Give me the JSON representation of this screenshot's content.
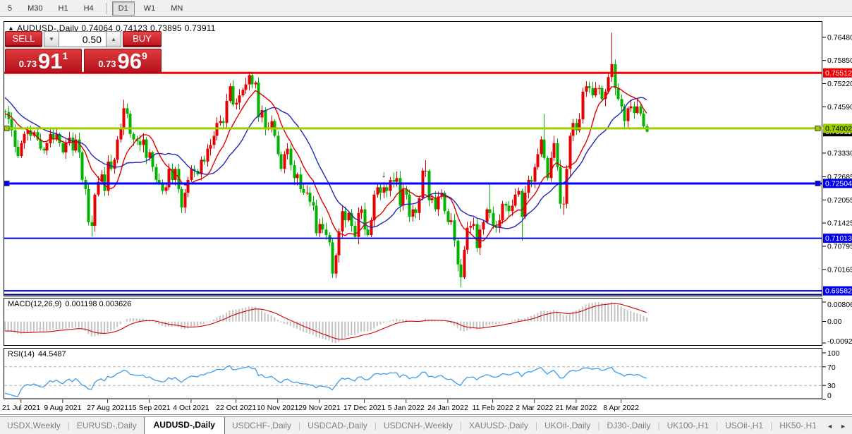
{
  "toolbar": {
    "timeframes": [
      {
        "label": "5",
        "active": false
      },
      {
        "label": "M30",
        "active": false
      },
      {
        "label": "H1",
        "active": false
      },
      {
        "label": "H4",
        "active": false
      },
      {
        "label": "D1",
        "active": true
      },
      {
        "label": "W1",
        "active": false
      },
      {
        "label": "MN",
        "active": false
      }
    ]
  },
  "quote_line": {
    "collapse_triangle": "▲",
    "symbol": "AUDUSD-,Daily",
    "open": "0.74064",
    "high": "0.74123",
    "low": "0.73895",
    "close": "0.73911"
  },
  "trade_panel": {
    "sell_label": "SELL",
    "buy_label": "BUY",
    "volume": "0.50",
    "down_arrow": "▼",
    "up_arrow": "▲",
    "sell_price_prefix": "0.73",
    "sell_price_big": "91",
    "sell_price_sup": "1",
    "buy_price_prefix": "0.73",
    "buy_price_big": "96",
    "buy_price_sup": "9"
  },
  "price_axis": {
    "ticks": [
      "0.76480",
      "0.75850",
      "0.75220",
      "0.74590",
      "0.73330",
      "0.72685",
      "0.72055",
      "0.71425",
      "0.70795",
      "0.70165"
    ],
    "badges": [
      {
        "label": "0.73911",
        "price": 0.73911,
        "bg": "#000000",
        "fg": "#ffffff"
      },
      {
        "label": "0.75512",
        "price": 0.75512,
        "bg": "#f00000",
        "fg": "#ffffff"
      },
      {
        "label": "0.74002",
        "price": 0.74002,
        "bg": "#9bcd00",
        "fg": "#000000"
      },
      {
        "label": "0.72504",
        "price": 0.72504,
        "bg": "#0000e8",
        "fg": "#ffffff"
      },
      {
        "label": "0.71013",
        "price": 0.71013,
        "bg": "#0000e8",
        "fg": "#ffffff"
      },
      {
        "label": "0.69582",
        "price": 0.69582,
        "bg": "#0000e8",
        "fg": "#ffffff"
      }
    ]
  },
  "macd_panel": {
    "name": "MACD(12,26,9)",
    "values": "0.001198 0.003626",
    "axis_max": "0.008061",
    "axis_zero": "0.00",
    "axis_min": "-0.009286"
  },
  "rsi_panel": {
    "name": "RSI(14)",
    "value": "44.5487",
    "axis": [
      "100",
      "70",
      "30",
      "0"
    ],
    "level_high": 70,
    "level_low": 30
  },
  "date_axis": {
    "ticks": [
      {
        "label": "21 Jul 2021",
        "i": 5
      },
      {
        "label": "9 Aug 2021",
        "i": 18
      },
      {
        "label": "27 Aug 2021",
        "i": 32
      },
      {
        "label": "15 Sep 2021",
        "i": 45
      },
      {
        "label": "4 Oct 2021",
        "i": 58
      },
      {
        "label": "22 Oct 2021",
        "i": 72
      },
      {
        "label": "10 Nov 2021",
        "i": 85
      },
      {
        "label": "29 Nov 2021",
        "i": 98
      },
      {
        "label": "17 Dec 2021",
        "i": 112
      },
      {
        "label": "5 Jan 2022",
        "i": 125
      },
      {
        "label": "24 Jan 2022",
        "i": 138
      },
      {
        "label": "11 Feb 2022",
        "i": 152
      },
      {
        "label": "2 Mar 2022",
        "i": 165
      },
      {
        "label": "21 Mar 2022",
        "i": 178
      },
      {
        "label": "8 Apr 2022",
        "i": 192
      }
    ]
  },
  "tabs": {
    "items": [
      {
        "label": "USDX,Weekly",
        "active": false
      },
      {
        "label": "EURUSD-,Daily",
        "active": false
      },
      {
        "label": "AUDUSD-,Daily",
        "active": true
      },
      {
        "label": "USDCHF-,Daily",
        "active": false
      },
      {
        "label": "USDCAD-,Daily",
        "active": false
      },
      {
        "label": "USDCNH-,Weekly",
        "active": false
      },
      {
        "label": "XAUUSD-,Daily",
        "active": false
      },
      {
        "label": "UKOil-,Daily",
        "active": false
      },
      {
        "label": "DJ30-,Daily",
        "active": false
      },
      {
        "label": "UK100-,H1",
        "active": false
      },
      {
        "label": "USOil-,H1",
        "active": false
      },
      {
        "label": "HK50-,H1",
        "active": false
      }
    ],
    "scroll_left": "◄",
    "scroll_right": "►"
  },
  "chart_data": {
    "type": "candlestick",
    "symbol": "AUDUSD",
    "timeframe": "Daily",
    "last_ohlc": {
      "open": 0.74064,
      "high": 0.74123,
      "low": 0.73895,
      "close": 0.73911
    },
    "y_axis": {
      "price_top": 0.769,
      "price_bottom": 0.6945
    },
    "colors": {
      "bull": "#e60000",
      "bear": "#00b400",
      "ma_fast": "#dd0000",
      "ma_slow": "#2028b8",
      "macd_hist": "#c3c3c3",
      "macd_signal": "#d00000",
      "rsi_line": "#3e9be8",
      "rsi_grid": "#b0b0b0"
    },
    "ma_fast_period": 10,
    "ma_slow_period": 20,
    "levels": [
      {
        "price": 0.75512,
        "color": "#f00000",
        "width": 3,
        "handle": false
      },
      {
        "price": 0.74002,
        "color": "#9bcd00",
        "width": 3,
        "handle": true
      },
      {
        "price": 0.72504,
        "color": "#0000ff",
        "width": 3,
        "handle": true
      },
      {
        "price": 0.71013,
        "color": "#0000e0",
        "width": 2,
        "handle": false
      },
      {
        "price": 0.69582,
        "color": "#0000e0",
        "width": 2,
        "handle": false
      },
      {
        "price": 0.6948,
        "color": "#000080",
        "width": 2,
        "handle": false
      }
    ],
    "annotations": [
      {
        "i": 118,
        "price": 0.7268,
        "glyph": "↓"
      }
    ],
    "warmup": [
      0.76,
      0.759,
      0.758,
      0.7565,
      0.755,
      0.7535,
      0.752,
      0.7505,
      0.749,
      0.7478,
      0.7468,
      0.7458,
      0.745,
      0.7442,
      0.7436,
      0.743,
      0.7426,
      0.743,
      0.7438,
      0.7446
    ],
    "closes": [
      0.7445,
      0.7425,
      0.7395,
      0.735,
      0.7325,
      0.736,
      0.7385,
      0.7395,
      0.738,
      0.739,
      0.737,
      0.7345,
      0.734,
      0.736,
      0.7385,
      0.737,
      0.7385,
      0.736,
      0.7335,
      0.736,
      0.7375,
      0.734,
      0.737,
      0.7335,
      0.726,
      0.7235,
      0.7145,
      0.7135,
      0.722,
      0.7255,
      0.7275,
      0.723,
      0.731,
      0.729,
      0.7315,
      0.737,
      0.74,
      0.7455,
      0.744,
      0.7385,
      0.737,
      0.7365,
      0.7355,
      0.737,
      0.732,
      0.7335,
      0.7295,
      0.726,
      0.725,
      0.723,
      0.724,
      0.729,
      0.726,
      0.729,
      0.7235,
      0.7185,
      0.7225,
      0.726,
      0.729,
      0.7285,
      0.7275,
      0.7315,
      0.731,
      0.7345,
      0.7355,
      0.738,
      0.7415,
      0.742,
      0.7415,
      0.7475,
      0.7515,
      0.7465,
      0.747,
      0.749,
      0.7505,
      0.752,
      0.7545,
      0.752,
      0.7525,
      0.743,
      0.745,
      0.74,
      0.74,
      0.742,
      0.738,
      0.733,
      0.729,
      0.733,
      0.7345,
      0.73,
      0.7265,
      0.7275,
      0.7235,
      0.7225,
      0.7225,
      0.72,
      0.719,
      0.7115,
      0.714,
      0.7125,
      0.711,
      0.709,
      0.7005,
      0.7055,
      0.712,
      0.7175,
      0.715,
      0.717,
      0.7135,
      0.7105,
      0.717,
      0.718,
      0.7125,
      0.711,
      0.715,
      0.722,
      0.724,
      0.7225,
      0.724,
      0.723,
      0.726,
      0.7255,
      0.7265,
      0.719,
      0.7235,
      0.722,
      0.716,
      0.718,
      0.717,
      0.721,
      0.7285,
      0.7285,
      0.7205,
      0.721,
      0.718,
      0.7215,
      0.7225,
      0.7175,
      0.7145,
      0.715,
      0.7095,
      0.703,
      0.6995,
      0.707,
      0.713,
      0.7135,
      0.714,
      0.7075,
      0.7125,
      0.7145,
      0.718,
      0.717,
      0.7135,
      0.713,
      0.715,
      0.7195,
      0.719,
      0.7175,
      0.719,
      0.722,
      0.723,
      0.716,
      0.7225,
      0.726,
      0.7255,
      0.7295,
      0.733,
      0.737,
      0.732,
      0.7265,
      0.732,
      0.736,
      0.7295,
      0.7195,
      0.7195,
      0.729,
      0.738,
      0.7415,
      0.7395,
      0.7425,
      0.75,
      0.7515,
      0.751,
      0.749,
      0.751,
      0.751,
      0.748,
      0.75,
      0.754,
      0.7575,
      0.751,
      0.748,
      0.746,
      0.742,
      0.7455,
      0.746,
      0.7442,
      0.746,
      0.744,
      0.7406,
      0.7391
    ],
    "overrides": {
      "27": {
        "l": 0.7106
      },
      "37": {
        "h": 0.7478
      },
      "55": {
        "l": 0.717
      },
      "76": {
        "h": 0.7555
      },
      "102": {
        "l": 0.6993
      },
      "131": {
        "h": 0.7314
      },
      "142": {
        "l": 0.6968
      },
      "151": {
        "h": 0.7249
      },
      "161": {
        "l": 0.7094
      },
      "168": {
        "h": 0.744
      },
      "174": {
        "l": 0.7165
      },
      "189": {
        "h": 0.7661
      },
      "200": {
        "o": 0.74064,
        "h": 0.74123,
        "l": 0.73895,
        "c": 0.73911
      }
    }
  }
}
